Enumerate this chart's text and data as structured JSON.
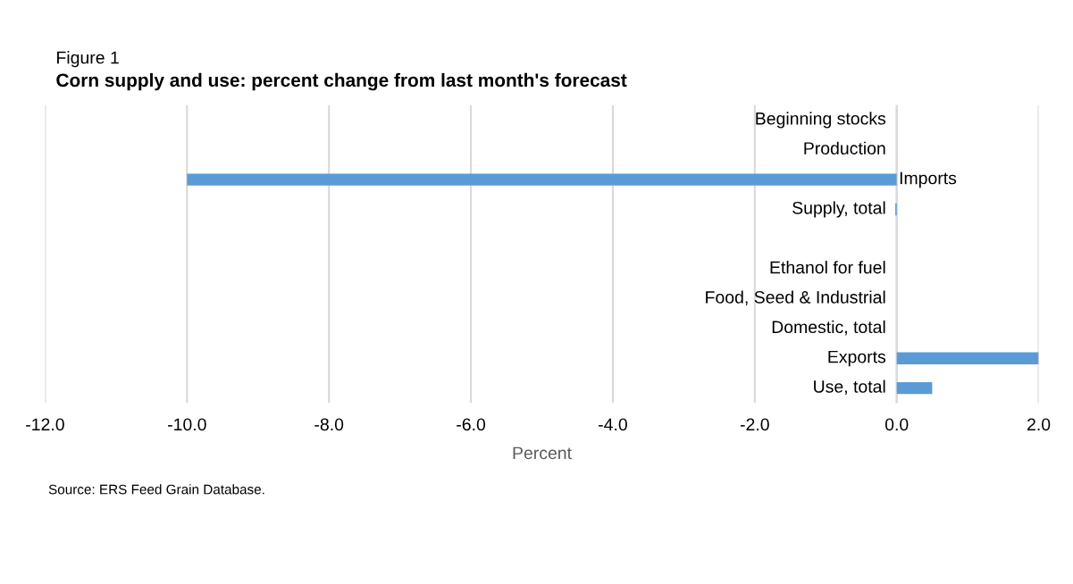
{
  "chart_data": {
    "type": "bar",
    "orientation": "horizontal",
    "title": "Corn supply and use: percent change from last month's forecast",
    "xlabel": "Percent",
    "annotations": [
      "Figure 1",
      "Source: ERS Feed Grain Database."
    ],
    "categories": [
      "Beginning stocks",
      "Production",
      "Imports",
      "Supply, total",
      null,
      "Ethanol for fuel",
      "Food, Seed & Industrial",
      "Domestic, total",
      "Exports",
      "Use, total"
    ],
    "values": [
      0,
      0,
      -10.0,
      -0.02,
      null,
      0,
      0,
      0,
      2.0,
      0.5
    ],
    "color": "#5b9bd5",
    "xlim": [
      -12,
      2
    ],
    "xticks": [
      {
        "value": -12,
        "label": "-12.0"
      },
      {
        "value": -10,
        "label": "-10.0"
      },
      {
        "value": -8,
        "label": "-8.0"
      },
      {
        "value": -6,
        "label": "-6.0"
      },
      {
        "value": -4,
        "label": "-4.0"
      },
      {
        "value": -2,
        "label": "-2.0"
      },
      {
        "value": 0,
        "label": "0.0"
      },
      {
        "value": 2,
        "label": "2.0"
      }
    ],
    "grid": "x",
    "legend": false
  }
}
